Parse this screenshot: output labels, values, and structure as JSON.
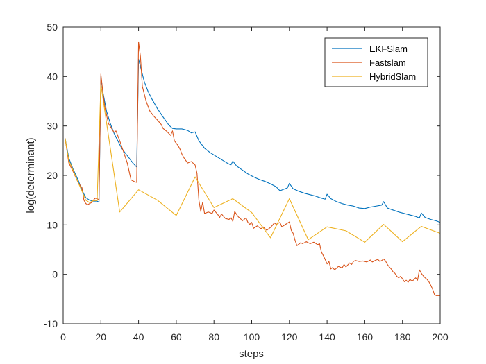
{
  "chart_data": {
    "type": "line",
    "title": "",
    "xlabel": "steps",
    "ylabel": "log(determinant)",
    "xlim": [
      0,
      200
    ],
    "ylim": [
      -10,
      50
    ],
    "xticks": [
      0,
      20,
      40,
      60,
      80,
      100,
      120,
      140,
      160,
      180,
      200
    ],
    "yticks": [
      -10,
      0,
      10,
      20,
      30,
      40,
      50
    ],
    "grid": false,
    "legend_position": "top-right",
    "series": [
      {
        "name": "EKFSlam",
        "color": "#0072BD",
        "points": [
          [
            1,
            27.5
          ],
          [
            3,
            23.5
          ],
          [
            5,
            21.5
          ],
          [
            8,
            19
          ],
          [
            10,
            17
          ],
          [
            12,
            15.5
          ],
          [
            14,
            15
          ],
          [
            16,
            14.8
          ],
          [
            18,
            14.8
          ],
          [
            19,
            14.6
          ],
          [
            20,
            40
          ],
          [
            21,
            37
          ],
          [
            23,
            33
          ],
          [
            25,
            30.5
          ],
          [
            27,
            28.5
          ],
          [
            29,
            27
          ],
          [
            31,
            25.5
          ],
          [
            33,
            24.5
          ],
          [
            35,
            23.5
          ],
          [
            37,
            22.5
          ],
          [
            39,
            21.7
          ],
          [
            40,
            43.5
          ],
          [
            41,
            42
          ],
          [
            43,
            39
          ],
          [
            45,
            37
          ],
          [
            47,
            35.5
          ],
          [
            50,
            33.5
          ],
          [
            53,
            31.8
          ],
          [
            56,
            30.2
          ],
          [
            58,
            29.5
          ],
          [
            60,
            29.4
          ],
          [
            63,
            29.4
          ],
          [
            66,
            29.1
          ],
          [
            68,
            28.6
          ],
          [
            70,
            28.8
          ],
          [
            72,
            27
          ],
          [
            75,
            25.5
          ],
          [
            78,
            24.6
          ],
          [
            81,
            23.9
          ],
          [
            84,
            23.2
          ],
          [
            87,
            22.5
          ],
          [
            89,
            22.1
          ],
          [
            90,
            22.9
          ],
          [
            92,
            21.9
          ],
          [
            95,
            21.1
          ],
          [
            98,
            20.3
          ],
          [
            101,
            19.7
          ],
          [
            104,
            19.2
          ],
          [
            107,
            18.8
          ],
          [
            110,
            18.3
          ],
          [
            113,
            17.7
          ],
          [
            115,
            16.9
          ],
          [
            117,
            17.2
          ],
          [
            119,
            17.5
          ],
          [
            120,
            18.4
          ],
          [
            122,
            17.3
          ],
          [
            125,
            16.8
          ],
          [
            128,
            16.4
          ],
          [
            131,
            16.1
          ],
          [
            134,
            15.8
          ],
          [
            137,
            15.4
          ],
          [
            139,
            15.2
          ],
          [
            140,
            16.2
          ],
          [
            142,
            15.3
          ],
          [
            145,
            14.7
          ],
          [
            148,
            14.3
          ],
          [
            151,
            14
          ],
          [
            154,
            13.8
          ],
          [
            157,
            13.4
          ],
          [
            160,
            13.3
          ],
          [
            163,
            13.6
          ],
          [
            166,
            13.8
          ],
          [
            169,
            14
          ],
          [
            170,
            14.7
          ],
          [
            172,
            13.4
          ],
          [
            175,
            13
          ],
          [
            178,
            12.6
          ],
          [
            181,
            12.3
          ],
          [
            184,
            12
          ],
          [
            187,
            11.7
          ],
          [
            189,
            11.4
          ],
          [
            190,
            12.4
          ],
          [
            192,
            11.5
          ],
          [
            195,
            11.1
          ],
          [
            198,
            10.8
          ],
          [
            200,
            10.5
          ]
        ]
      },
      {
        "name": "Fastslam",
        "color": "#D95319",
        "points": [
          [
            1,
            27.5
          ],
          [
            3,
            22.5
          ],
          [
            5,
            21
          ],
          [
            8,
            18.5
          ],
          [
            10,
            17.5
          ],
          [
            11,
            15
          ],
          [
            12,
            14.3
          ],
          [
            13,
            14.1
          ],
          [
            15,
            14.5
          ],
          [
            16,
            15
          ],
          [
            17,
            15.4
          ],
          [
            18,
            15.3
          ],
          [
            19,
            15.1
          ],
          [
            20,
            40.5
          ],
          [
            21,
            37
          ],
          [
            22,
            34
          ],
          [
            24,
            30.5
          ],
          [
            26,
            29.3
          ],
          [
            27,
            28.7
          ],
          [
            28,
            29
          ],
          [
            30,
            27
          ],
          [
            32,
            24.8
          ],
          [
            34,
            22.5
          ],
          [
            35,
            20.8
          ],
          [
            36,
            19.1
          ],
          [
            38,
            18.7
          ],
          [
            39,
            18.6
          ],
          [
            40,
            47
          ],
          [
            41,
            44
          ],
          [
            42,
            38
          ],
          [
            44,
            35
          ],
          [
            46,
            33
          ],
          [
            48,
            32
          ],
          [
            50,
            31.2
          ],
          [
            52,
            30.3
          ],
          [
            53,
            29.5
          ],
          [
            55,
            28.9
          ],
          [
            57,
            28.1
          ],
          [
            58,
            29
          ],
          [
            59,
            27
          ],
          [
            61,
            26
          ],
          [
            62,
            25.3
          ],
          [
            63,
            24.3
          ],
          [
            64,
            23.6
          ],
          [
            66,
            22.5
          ],
          [
            68,
            22.8
          ],
          [
            70,
            22.1
          ],
          [
            71,
            20.4
          ],
          [
            72,
            15
          ],
          [
            73,
            12.7
          ],
          [
            74,
            14.6
          ],
          [
            75,
            12.3
          ],
          [
            77,
            12.6
          ],
          [
            79,
            12.3
          ],
          [
            80,
            13
          ],
          [
            82,
            12.1
          ],
          [
            83,
            11.5
          ],
          [
            84,
            12.2
          ],
          [
            86,
            11.3
          ],
          [
            88,
            11.1
          ],
          [
            89,
            11.5
          ],
          [
            90,
            10.7
          ],
          [
            91,
            12.7
          ],
          [
            92,
            12.1
          ],
          [
            93,
            11.6
          ],
          [
            94,
            11.3
          ],
          [
            95,
            10.8
          ],
          [
            97,
            11.4
          ],
          [
            98,
            10.5
          ],
          [
            99,
            10.1
          ],
          [
            100,
            10.5
          ],
          [
            101,
            9.3
          ],
          [
            103,
            9.8
          ],
          [
            105,
            9.2
          ],
          [
            106,
            9.6
          ],
          [
            108,
            8.9
          ],
          [
            110,
            9.5
          ],
          [
            111,
            9.9
          ],
          [
            112,
            10.4
          ],
          [
            113,
            10.1
          ],
          [
            115,
            10.5
          ],
          [
            116,
            9.6
          ],
          [
            118,
            10.1
          ],
          [
            120,
            10.6
          ],
          [
            121,
            8.9
          ],
          [
            122,
            8.3
          ],
          [
            123,
            6.9
          ],
          [
            124,
            5.8
          ],
          [
            126,
            6.4
          ],
          [
            127,
            6.2
          ],
          [
            129,
            6.6
          ],
          [
            131,
            6.2
          ],
          [
            133,
            6.5
          ],
          [
            135,
            6
          ],
          [
            136,
            6.2
          ],
          [
            137,
            4.5
          ],
          [
            138,
            3.8
          ],
          [
            139,
            3
          ],
          [
            140,
            2.1
          ],
          [
            141,
            2.6
          ],
          [
            142,
            1.1
          ],
          [
            143,
            1.4
          ],
          [
            144,
            0.9
          ],
          [
            146,
            1.6
          ],
          [
            148,
            1.3
          ],
          [
            149,
            2
          ],
          [
            150,
            1.5
          ],
          [
            151,
            1.9
          ],
          [
            152,
            2.3
          ],
          [
            153,
            2
          ],
          [
            154,
            2.6
          ],
          [
            155,
            2.8
          ],
          [
            157,
            2.6
          ],
          [
            159,
            2.7
          ],
          [
            161,
            2.5
          ],
          [
            163,
            2.9
          ],
          [
            164,
            2.5
          ],
          [
            166,
            2.9
          ],
          [
            167,
            3
          ],
          [
            168,
            2.6
          ],
          [
            169,
            2.8
          ],
          [
            170,
            3.1
          ],
          [
            171,
            2.7
          ],
          [
            172,
            2
          ],
          [
            173,
            1.5
          ],
          [
            174,
            1.1
          ],
          [
            175,
            0.5
          ],
          [
            176,
            0.2
          ],
          [
            177,
            -0.4
          ],
          [
            178,
            -0.7
          ],
          [
            179,
            -0.4
          ],
          [
            180,
            -0.9
          ],
          [
            181,
            -1.5
          ],
          [
            182,
            -1.2
          ],
          [
            183,
            -1.6
          ],
          [
            184,
            -1
          ],
          [
            185,
            -1.4
          ],
          [
            186,
            -1.1
          ],
          [
            187,
            -0.7
          ],
          [
            188,
            -1.2
          ],
          [
            189,
            0.9
          ],
          [
            190,
            0.2
          ],
          [
            191,
            -0.3
          ],
          [
            192,
            -0.7
          ],
          [
            193,
            -1
          ],
          [
            194,
            -1.5
          ],
          [
            195,
            -2.2
          ],
          [
            196,
            -3
          ],
          [
            197,
            -4.1
          ],
          [
            198,
            -4.3
          ],
          [
            200,
            -4.3
          ]
        ]
      },
      {
        "name": "HybridSlam",
        "color": "#EDB120",
        "points": [
          [
            1,
            27.5
          ],
          [
            3,
            23
          ],
          [
            5,
            21.3
          ],
          [
            8,
            18.5
          ],
          [
            10,
            16.8
          ],
          [
            12,
            15
          ],
          [
            14,
            14.5
          ],
          [
            16,
            14.9
          ],
          [
            18,
            14.9
          ],
          [
            20,
            38.4
          ],
          [
            30,
            12.6
          ],
          [
            40,
            17.1
          ],
          [
            50,
            15
          ],
          [
            60,
            11.9
          ],
          [
            70,
            19.7
          ],
          [
            80,
            13.5
          ],
          [
            90,
            15.3
          ],
          [
            100,
            12.5
          ],
          [
            110,
            7.4
          ],
          [
            120,
            15.3
          ],
          [
            130,
            7
          ],
          [
            140,
            9.6
          ],
          [
            150,
            8.8
          ],
          [
            160,
            6.5
          ],
          [
            170,
            10.1
          ],
          [
            180,
            6.6
          ],
          [
            190,
            9.7
          ],
          [
            200,
            8.3
          ]
        ]
      }
    ]
  }
}
